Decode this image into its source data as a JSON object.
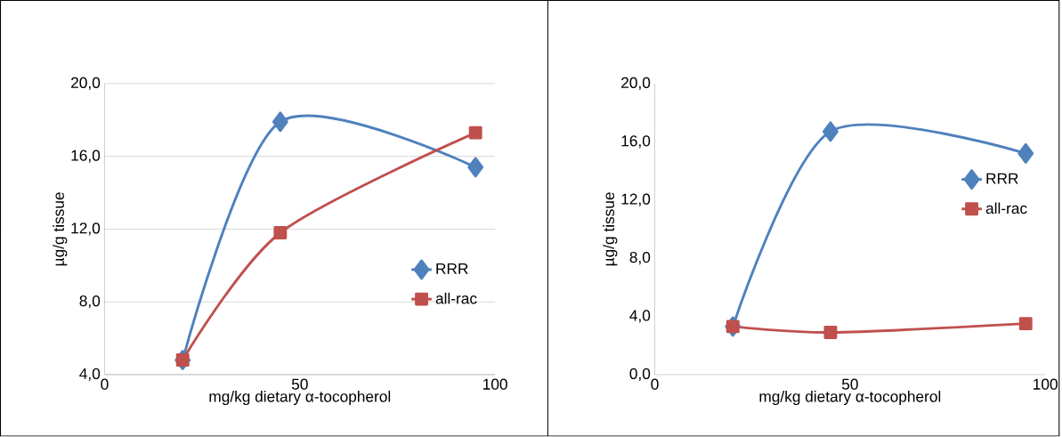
{
  "chart_data": [
    {
      "type": "line",
      "xlabel": "mg/kg dietary α-tocopherol",
      "ylabel": "µg/g tissue",
      "xlim": [
        0,
        100
      ],
      "xticks": [
        0,
        50,
        100
      ],
      "ylim": [
        4,
        20
      ],
      "yticks": [
        {
          "value": 4,
          "label": "4,0"
        },
        {
          "value": 8,
          "label": "8,0"
        },
        {
          "value": 12,
          "label": "12,0"
        },
        {
          "value": 16,
          "label": "16,0"
        },
        {
          "value": 20,
          "label": "20,0"
        }
      ],
      "grid": "y",
      "legend": "bottom right",
      "series": [
        {
          "name": "RRR",
          "color": "#4f81bd",
          "marker": "diamond",
          "x": [
            20,
            45,
            95
          ],
          "values": [
            4.8,
            17.9,
            15.4
          ]
        },
        {
          "name": "all-rac",
          "color": "#c0504d",
          "marker": "square",
          "x": [
            20,
            45,
            95
          ],
          "values": [
            4.8,
            11.8,
            17.3
          ]
        }
      ]
    },
    {
      "type": "line",
      "xlabel": "mg/kg dietary α-tocopherol",
      "ylabel": "µg/g tissue",
      "xlim": [
        0,
        100
      ],
      "xticks": [
        0,
        50,
        100
      ],
      "ylim": [
        0,
        20
      ],
      "yticks": [
        {
          "value": 0,
          "label": "0,0"
        },
        {
          "value": 4,
          "label": "4,0"
        },
        {
          "value": 8,
          "label": "8,0"
        },
        {
          "value": 12,
          "label": "12,0"
        },
        {
          "value": 16,
          "label": "16,0"
        },
        {
          "value": 20,
          "label": "20,0"
        }
      ],
      "legend": "right",
      "series": [
        {
          "name": "RRR",
          "color": "#4f81bd",
          "marker": "diamond",
          "x": [
            20,
            45,
            95
          ],
          "values": [
            3.3,
            16.7,
            15.2
          ]
        },
        {
          "name": "all-rac",
          "color": "#c0504d",
          "marker": "square",
          "x": [
            20,
            45,
            95
          ],
          "values": [
            3.3,
            2.9,
            3.5
          ]
        }
      ]
    }
  ]
}
